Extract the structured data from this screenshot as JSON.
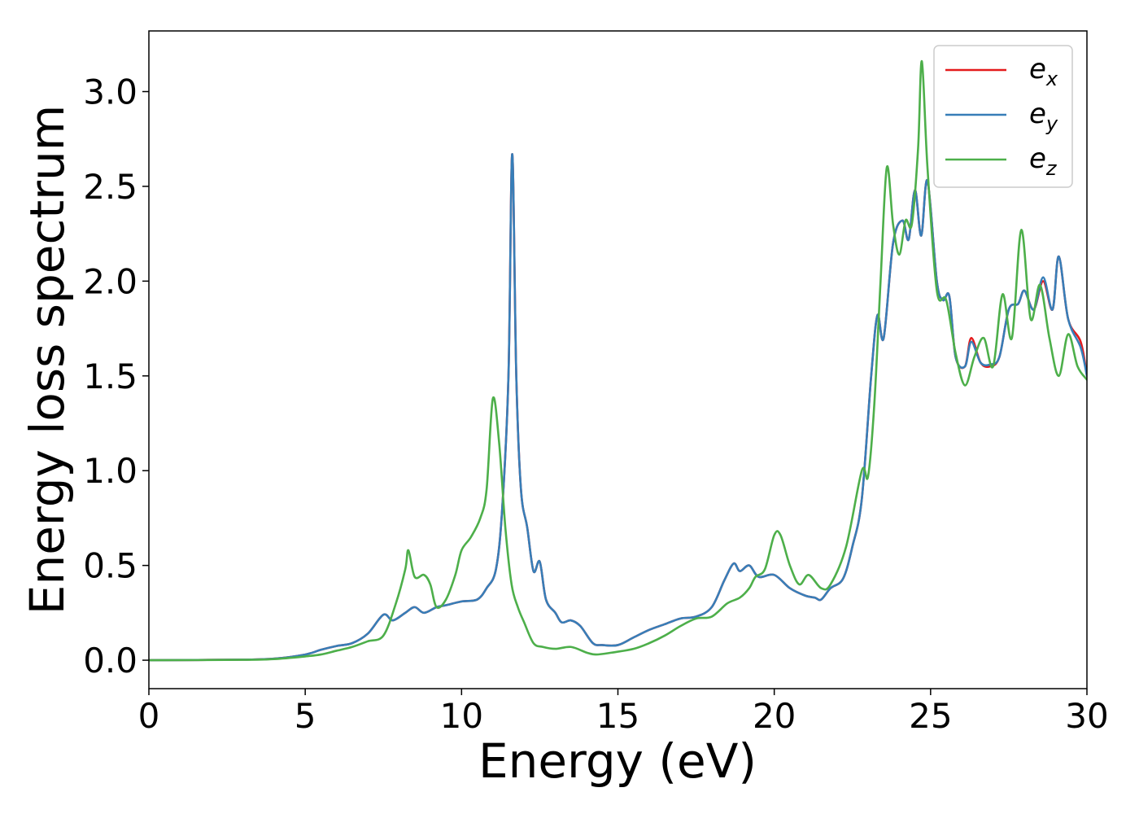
{
  "chart_data": {
    "type": "line",
    "xlabel": "Energy (eV)",
    "ylabel": "Energy loss spectrum",
    "xlim": [
      0,
      30
    ],
    "ylim": [
      -0.15,
      3.32
    ],
    "x_ticks": [
      "0",
      "5",
      "10",
      "15",
      "20",
      "25",
      "30"
    ],
    "y_ticks": [
      "0.0",
      "0.5",
      "1.0",
      "1.5",
      "2.0",
      "2.5",
      "3.0"
    ],
    "grid": false,
    "legend_position": "top-right",
    "series": [
      {
        "name": "e_x",
        "label_base": "e",
        "label_sub": "x",
        "color": "#e41a1c",
        "points": [
          [
            0,
            0
          ],
          [
            3,
            0.003
          ],
          [
            4,
            0.008
          ],
          [
            5,
            0.03
          ],
          [
            5.5,
            0.055
          ],
          [
            6,
            0.075
          ],
          [
            6.5,
            0.09
          ],
          [
            7,
            0.14
          ],
          [
            7.5,
            0.24
          ],
          [
            7.8,
            0.21
          ],
          [
            8.2,
            0.25
          ],
          [
            8.5,
            0.28
          ],
          [
            8.8,
            0.25
          ],
          [
            9.2,
            0.28
          ],
          [
            9.5,
            0.29
          ],
          [
            10,
            0.31
          ],
          [
            10.5,
            0.32
          ],
          [
            10.8,
            0.38
          ],
          [
            11.1,
            0.48
          ],
          [
            11.3,
            0.8
          ],
          [
            11.5,
            1.5
          ],
          [
            11.62,
            2.67
          ],
          [
            11.75,
            1.5
          ],
          [
            11.9,
            0.9
          ],
          [
            12.1,
            0.7
          ],
          [
            12.3,
            0.47
          ],
          [
            12.5,
            0.52
          ],
          [
            12.7,
            0.32
          ],
          [
            13,
            0.25
          ],
          [
            13.2,
            0.2
          ],
          [
            13.5,
            0.21
          ],
          [
            13.8,
            0.18
          ],
          [
            14.2,
            0.09
          ],
          [
            14.5,
            0.08
          ],
          [
            15,
            0.08
          ],
          [
            15.5,
            0.12
          ],
          [
            16,
            0.16
          ],
          [
            16.5,
            0.19
          ],
          [
            17,
            0.22
          ],
          [
            17.5,
            0.23
          ],
          [
            18,
            0.28
          ],
          [
            18.4,
            0.42
          ],
          [
            18.7,
            0.51
          ],
          [
            18.9,
            0.47
          ],
          [
            19.2,
            0.5
          ],
          [
            19.5,
            0.44
          ],
          [
            20,
            0.45
          ],
          [
            20.5,
            0.38
          ],
          [
            21,
            0.34
          ],
          [
            21.3,
            0.33
          ],
          [
            21.5,
            0.32
          ],
          [
            21.8,
            0.38
          ],
          [
            22.2,
            0.43
          ],
          [
            22.5,
            0.6
          ],
          [
            22.8,
            0.85
          ],
          [
            23.1,
            1.5
          ],
          [
            23.3,
            1.82
          ],
          [
            23.5,
            1.7
          ],
          [
            23.8,
            2.2
          ],
          [
            24.1,
            2.32
          ],
          [
            24.3,
            2.22
          ],
          [
            24.5,
            2.48
          ],
          [
            24.7,
            2.24
          ],
          [
            24.9,
            2.53
          ],
          [
            25.2,
            2.0
          ],
          [
            25.4,
            1.9
          ],
          [
            25.6,
            1.92
          ],
          [
            25.8,
            1.6
          ],
          [
            26.1,
            1.55
          ],
          [
            26.3,
            1.7
          ],
          [
            26.6,
            1.57
          ],
          [
            26.9,
            1.55
          ],
          [
            27.2,
            1.6
          ],
          [
            27.5,
            1.85
          ],
          [
            27.8,
            1.88
          ],
          [
            28.0,
            1.95
          ],
          [
            28.3,
            1.85
          ],
          [
            28.6,
            2.0
          ],
          [
            28.9,
            1.85
          ],
          [
            29.1,
            2.13
          ],
          [
            29.4,
            1.8
          ],
          [
            29.8,
            1.68
          ],
          [
            30,
            1.5
          ]
        ]
      },
      {
        "name": "e_y",
        "label_base": "e",
        "label_sub": "y",
        "color": "#377eb8",
        "points": [
          [
            0,
            0
          ],
          [
            3,
            0.003
          ],
          [
            4,
            0.008
          ],
          [
            5,
            0.03
          ],
          [
            5.5,
            0.055
          ],
          [
            6,
            0.075
          ],
          [
            6.5,
            0.09
          ],
          [
            7,
            0.14
          ],
          [
            7.5,
            0.24
          ],
          [
            7.8,
            0.21
          ],
          [
            8.2,
            0.25
          ],
          [
            8.5,
            0.28
          ],
          [
            8.8,
            0.25
          ],
          [
            9.2,
            0.28
          ],
          [
            9.5,
            0.29
          ],
          [
            10,
            0.31
          ],
          [
            10.5,
            0.32
          ],
          [
            10.8,
            0.38
          ],
          [
            11.1,
            0.48
          ],
          [
            11.3,
            0.8
          ],
          [
            11.5,
            1.5
          ],
          [
            11.62,
            2.67
          ],
          [
            11.75,
            1.5
          ],
          [
            11.9,
            0.9
          ],
          [
            12.1,
            0.7
          ],
          [
            12.3,
            0.47
          ],
          [
            12.5,
            0.52
          ],
          [
            12.7,
            0.32
          ],
          [
            13,
            0.25
          ],
          [
            13.2,
            0.2
          ],
          [
            13.5,
            0.21
          ],
          [
            13.8,
            0.18
          ],
          [
            14.2,
            0.09
          ],
          [
            14.5,
            0.08
          ],
          [
            15,
            0.08
          ],
          [
            15.5,
            0.12
          ],
          [
            16,
            0.16
          ],
          [
            16.5,
            0.19
          ],
          [
            17,
            0.22
          ],
          [
            17.5,
            0.23
          ],
          [
            18,
            0.28
          ],
          [
            18.4,
            0.42
          ],
          [
            18.7,
            0.51
          ],
          [
            18.9,
            0.47
          ],
          [
            19.2,
            0.5
          ],
          [
            19.5,
            0.44
          ],
          [
            20,
            0.45
          ],
          [
            20.5,
            0.38
          ],
          [
            21,
            0.34
          ],
          [
            21.3,
            0.33
          ],
          [
            21.5,
            0.32
          ],
          [
            21.8,
            0.38
          ],
          [
            22.2,
            0.43
          ],
          [
            22.5,
            0.6
          ],
          [
            22.8,
            0.85
          ],
          [
            23.1,
            1.5
          ],
          [
            23.3,
            1.82
          ],
          [
            23.5,
            1.7
          ],
          [
            23.8,
            2.2
          ],
          [
            24.1,
            2.32
          ],
          [
            24.3,
            2.22
          ],
          [
            24.5,
            2.48
          ],
          [
            24.7,
            2.24
          ],
          [
            24.9,
            2.53
          ],
          [
            25.2,
            2.0
          ],
          [
            25.4,
            1.9
          ],
          [
            25.6,
            1.92
          ],
          [
            25.8,
            1.6
          ],
          [
            26.1,
            1.55
          ],
          [
            26.3,
            1.68
          ],
          [
            26.6,
            1.57
          ],
          [
            26.9,
            1.56
          ],
          [
            27.2,
            1.6
          ],
          [
            27.5,
            1.85
          ],
          [
            27.8,
            1.88
          ],
          [
            28.0,
            1.95
          ],
          [
            28.3,
            1.85
          ],
          [
            28.6,
            2.02
          ],
          [
            28.9,
            1.85
          ],
          [
            29.1,
            2.13
          ],
          [
            29.4,
            1.8
          ],
          [
            29.8,
            1.65
          ],
          [
            30,
            1.5
          ]
        ]
      },
      {
        "name": "e_z",
        "label_base": "e",
        "label_sub": "z",
        "color": "#4daf4a",
        "points": [
          [
            0,
            0
          ],
          [
            3,
            0.002
          ],
          [
            4,
            0.006
          ],
          [
            5,
            0.02
          ],
          [
            5.5,
            0.03
          ],
          [
            6,
            0.05
          ],
          [
            6.5,
            0.07
          ],
          [
            7,
            0.1
          ],
          [
            7.5,
            0.13
          ],
          [
            7.9,
            0.3
          ],
          [
            8.2,
            0.48
          ],
          [
            8.3,
            0.58
          ],
          [
            8.5,
            0.44
          ],
          [
            8.8,
            0.45
          ],
          [
            9,
            0.4
          ],
          [
            9.2,
            0.28
          ],
          [
            9.5,
            0.32
          ],
          [
            9.8,
            0.45
          ],
          [
            10,
            0.58
          ],
          [
            10.3,
            0.65
          ],
          [
            10.6,
            0.75
          ],
          [
            10.8,
            0.9
          ],
          [
            11.0,
            1.38
          ],
          [
            11.2,
            1.15
          ],
          [
            11.4,
            0.7
          ],
          [
            11.6,
            0.4
          ],
          [
            11.8,
            0.28
          ],
          [
            12.0,
            0.2
          ],
          [
            12.3,
            0.09
          ],
          [
            12.6,
            0.07
          ],
          [
            13,
            0.06
          ],
          [
            13.5,
            0.07
          ],
          [
            14,
            0.04
          ],
          [
            14.3,
            0.03
          ],
          [
            14.8,
            0.04
          ],
          [
            15.5,
            0.06
          ],
          [
            16,
            0.09
          ],
          [
            16.5,
            0.13
          ],
          [
            17,
            0.18
          ],
          [
            17.5,
            0.22
          ],
          [
            18,
            0.23
          ],
          [
            18.5,
            0.3
          ],
          [
            18.9,
            0.33
          ],
          [
            19.2,
            0.38
          ],
          [
            19.4,
            0.44
          ],
          [
            19.7,
            0.48
          ],
          [
            20,
            0.66
          ],
          [
            20.2,
            0.66
          ],
          [
            20.5,
            0.5
          ],
          [
            20.8,
            0.4
          ],
          [
            21.1,
            0.45
          ],
          [
            21.5,
            0.38
          ],
          [
            21.8,
            0.4
          ],
          [
            22.3,
            0.6
          ],
          [
            22.8,
            1.0
          ],
          [
            23.0,
            0.97
          ],
          [
            23.2,
            1.35
          ],
          [
            23.4,
            2.0
          ],
          [
            23.6,
            2.6
          ],
          [
            23.8,
            2.3
          ],
          [
            24.0,
            2.14
          ],
          [
            24.2,
            2.32
          ],
          [
            24.4,
            2.3
          ],
          [
            24.6,
            2.7
          ],
          [
            24.72,
            3.16
          ],
          [
            24.9,
            2.6
          ],
          [
            25.2,
            1.95
          ],
          [
            25.5,
            1.9
          ],
          [
            25.8,
            1.62
          ],
          [
            26.1,
            1.45
          ],
          [
            26.4,
            1.6
          ],
          [
            26.7,
            1.7
          ],
          [
            27.0,
            1.55
          ],
          [
            27.3,
            1.93
          ],
          [
            27.6,
            1.7
          ],
          [
            27.9,
            2.27
          ],
          [
            28.2,
            1.8
          ],
          [
            28.5,
            1.98
          ],
          [
            28.8,
            1.7
          ],
          [
            29.1,
            1.5
          ],
          [
            29.4,
            1.72
          ],
          [
            29.7,
            1.55
          ],
          [
            30,
            1.48
          ]
        ]
      }
    ]
  }
}
